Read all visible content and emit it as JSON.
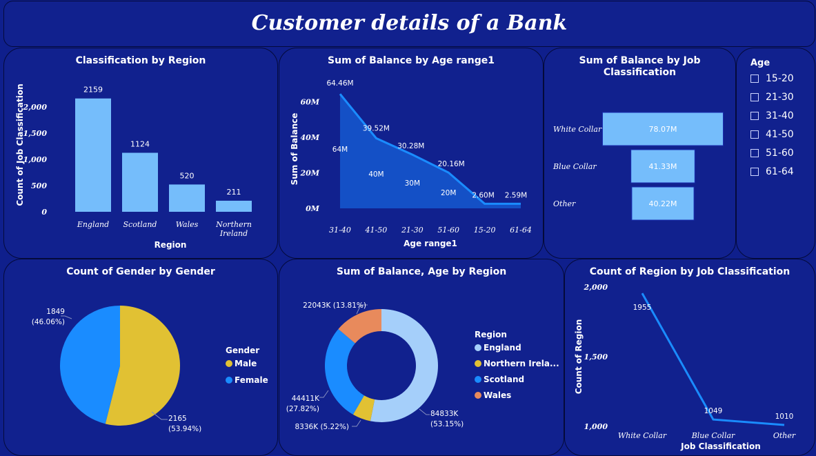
{
  "page_title": "Customer details of a Bank",
  "slicer": {
    "title": "Age",
    "items": [
      "15-20",
      "21-30",
      "31-40",
      "41-50",
      "51-60",
      "61-64"
    ]
  },
  "colors": {
    "card_bg": "#11218e",
    "bar": "#75bdfb",
    "line": "#1a8cff",
    "area": "#1553c9",
    "male": "#e1c133",
    "female": "#1a8cff",
    "england": "#a5cffa",
    "northern_ireland": "#e1c133",
    "scotland": "#1a8cff",
    "wales": "#e88a5c"
  },
  "chart_data": [
    {
      "id": "region",
      "type": "bar",
      "title": "Classification by Region",
      "xlabel": "Region",
      "ylabel": "Count of Job Classification",
      "categories": [
        "England",
        "Scotland",
        "Wales",
        "Northern Ireland"
      ],
      "values": [
        2159,
        1124,
        520,
        211
      ],
      "value_labels": [
        "2159",
        "1124",
        "520",
        "211"
      ],
      "yticks": [
        "0",
        "500",
        "1,000",
        "1,500",
        "2,000"
      ],
      "ylim": [
        0,
        2300
      ]
    },
    {
      "id": "age",
      "type": "area",
      "title": "Sum of Balance by Age range1",
      "xlabel": "Age range1",
      "ylabel": "Sum of Balance",
      "categories": [
        "31-40",
        "41-50",
        "21-30",
        "51-60",
        "15-20",
        "61-64"
      ],
      "values": [
        64.46,
        39.52,
        30.28,
        20.16,
        2.6,
        2.59
      ],
      "line_labels": [
        "64.46M",
        "39.52M",
        "30.28M",
        "20.16M",
        "2.60M",
        "2.59M"
      ],
      "area_labels": [
        "64M",
        "40M",
        "30M",
        "20M",
        "",
        ""
      ],
      "yticks": [
        "0M",
        "20M",
        "40M",
        "60M"
      ],
      "ylim": [
        0,
        70
      ]
    },
    {
      "id": "job",
      "type": "bar",
      "orientation": "horizontal",
      "title": "Sum of Balance by Job Classification",
      "categories": [
        "White Collar",
        "Blue Collar",
        "Other"
      ],
      "values": [
        78.07,
        41.33,
        40.22
      ],
      "value_labels": [
        "78.07M",
        "41.33M",
        "40.22M"
      ]
    },
    {
      "id": "gender",
      "type": "pie",
      "title": "Count of Gender by Gender",
      "legend_title": "Gender",
      "categories": [
        "Male",
        "Female"
      ],
      "values": [
        2165,
        1849
      ],
      "value_labels": [
        "2165",
        "1849"
      ],
      "pct_labels": [
        "(53.94%)",
        "(46.06%)"
      ]
    },
    {
      "id": "donut",
      "type": "pie",
      "title": "Sum of Balance, Age by Region",
      "legend_title": "Region",
      "categories": [
        "England",
        "Northern Ireland",
        "Scotland",
        "Wales"
      ],
      "legend_labels": [
        "England",
        "Northern Irela...",
        "Scotland",
        "Wales"
      ],
      "values": [
        84833,
        8336,
        44411,
        22043
      ],
      "value_labels": [
        "84833K",
        "8336K (5.22%)",
        "44411K",
        "22043K (13.81%)"
      ],
      "pct_labels": [
        "(53.15%)",
        "",
        "(27.82%)",
        ""
      ]
    },
    {
      "id": "jobcount",
      "type": "line",
      "title": "Count of Region by Job Classification",
      "xlabel": "Job Classification",
      "ylabel": "Count of Region",
      "categories": [
        "White Collar",
        "Blue Collar",
        "Other"
      ],
      "values": [
        1955,
        1049,
        1010
      ],
      "value_labels": [
        "1955",
        "1049",
        "1010"
      ],
      "yticks": [
        "1,000",
        "1,500",
        "2,000"
      ],
      "ylim": [
        1000,
        2000
      ]
    }
  ]
}
